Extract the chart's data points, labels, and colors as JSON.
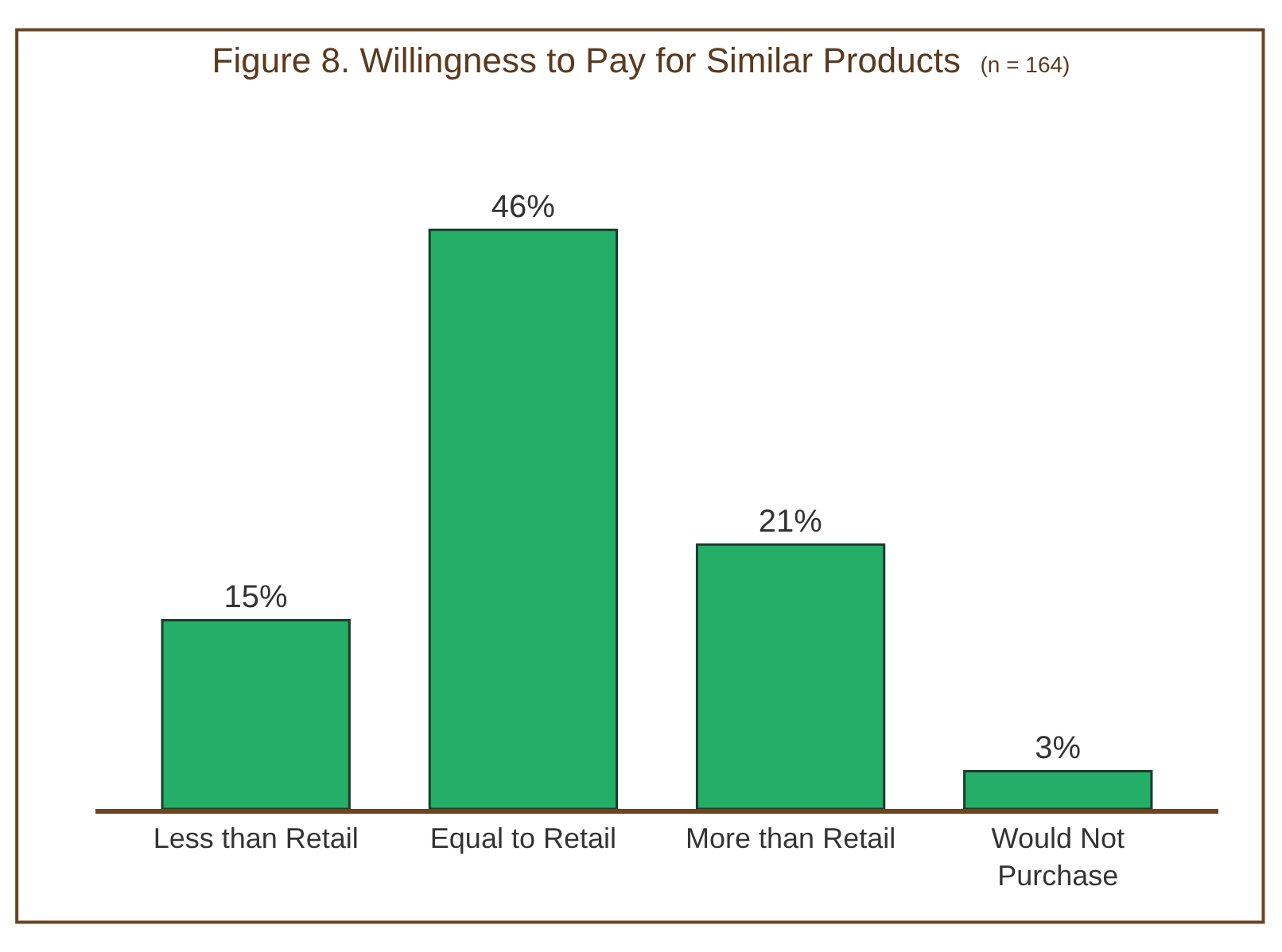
{
  "chart_data": {
    "type": "bar",
    "title": "Figure 8. Willingness to Pay for Similar Products",
    "subtitle": "(n = 164)",
    "categories": [
      "Less than Retail",
      "Equal to Retail",
      "More than Retail",
      "Would Not Purchase"
    ],
    "values": [
      15,
      46,
      21,
      3
    ],
    "value_labels": [
      "15%",
      "46%",
      "21%",
      "3%"
    ],
    "color": "#25ae68"
  }
}
